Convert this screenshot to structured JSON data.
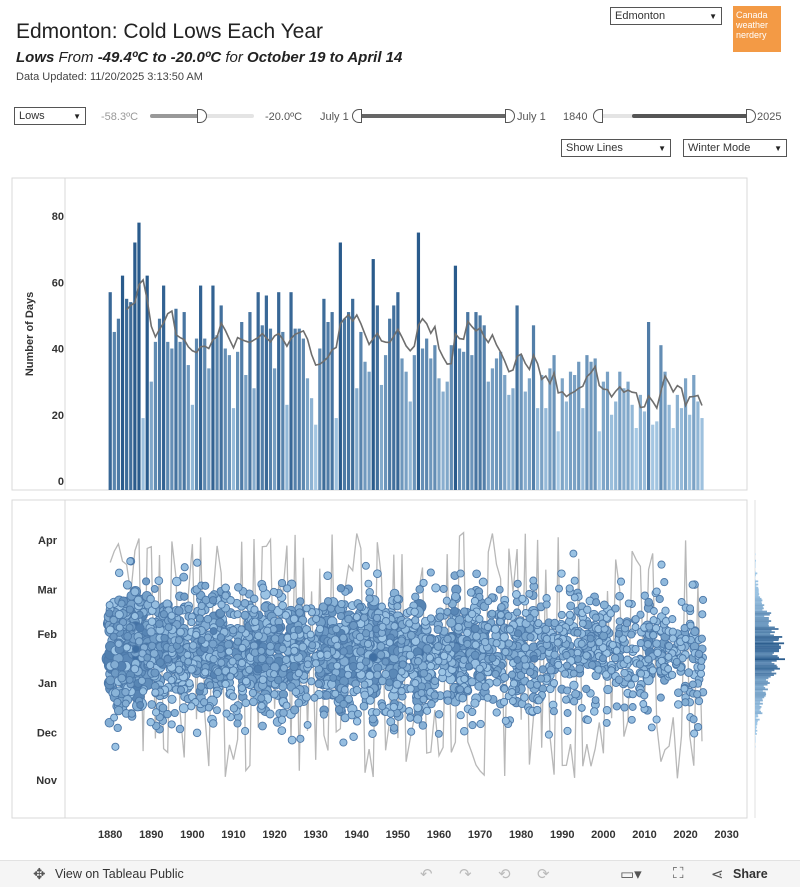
{
  "header": {
    "title": "Edmonton: Cold Lows Each Year",
    "subtitle_prefix": "Lows",
    "subtitle_from": "From",
    "subtitle_range": "-49.4ºC to -20.0ºC",
    "subtitle_for": "for",
    "subtitle_dates": "October 19 to April 14",
    "updated": "Data Updated: 11/20/2025 3:13:50 AM"
  },
  "controls": {
    "city": "Edmonton",
    "brand": "Canada weather nerdery",
    "measure": "Lows",
    "temp_min_label": "-58.3ºC",
    "temp_max_label": "-20.0ºC",
    "date_start_label": "July 1",
    "date_end_label": "July 1",
    "year_start_label": "1840",
    "year_end_label": "2025",
    "lines_option": "Show Lines",
    "mode_option": "Winter Mode"
  },
  "footer": {
    "view_label": "View on Tableau Public",
    "share_label": "Share"
  },
  "colors": {
    "bar_dark": "#2a5b8c",
    "bar_light": "#a9cbe6",
    "line": "#6e6e6e",
    "dot_light": "#a9d0ee",
    "dot_dark": "#3f6fa3",
    "brand": "#f39a45"
  },
  "chart_data": [
    {
      "type": "bar",
      "ylabel": "Number of Days",
      "yticks": [
        0,
        20,
        40,
        60,
        80
      ],
      "ylim": [
        -3,
        88
      ],
      "xlim": [
        1869,
        2033
      ],
      "grid": false,
      "overlay_line": "moving average",
      "x": [
        1880,
        1881,
        1882,
        1883,
        1884,
        1885,
        1886,
        1887,
        1888,
        1889,
        1890,
        1891,
        1892,
        1893,
        1894,
        1895,
        1896,
        1897,
        1898,
        1899,
        1900,
        1901,
        1902,
        1903,
        1904,
        1905,
        1906,
        1907,
        1908,
        1909,
        1910,
        1911,
        1912,
        1913,
        1914,
        1915,
        1916,
        1917,
        1918,
        1919,
        1920,
        1921,
        1922,
        1923,
        1924,
        1925,
        1926,
        1927,
        1928,
        1929,
        1930,
        1931,
        1932,
        1933,
        1934,
        1935,
        1936,
        1937,
        1938,
        1939,
        1940,
        1941,
        1942,
        1943,
        1944,
        1945,
        1946,
        1947,
        1948,
        1949,
        1950,
        1951,
        1952,
        1953,
        1954,
        1955,
        1956,
        1957,
        1958,
        1959,
        1960,
        1961,
        1962,
        1963,
        1964,
        1965,
        1966,
        1967,
        1968,
        1969,
        1970,
        1971,
        1972,
        1973,
        1974,
        1975,
        1976,
        1977,
        1978,
        1979,
        1980,
        1981,
        1982,
        1983,
        1984,
        1985,
        1986,
        1987,
        1988,
        1989,
        1990,
        1991,
        1992,
        1993,
        1994,
        1995,
        1996,
        1997,
        1998,
        1999,
        2000,
        2001,
        2002,
        2003,
        2004,
        2005,
        2006,
        2007,
        2008,
        2009,
        2010,
        2011,
        2012,
        2013,
        2014,
        2015,
        2016,
        2017,
        2018,
        2019,
        2020,
        2021,
        2022,
        2023,
        2024
      ],
      "values": [
        57,
        45,
        49,
        62,
        55,
        54,
        72,
        78,
        19,
        62,
        30,
        42,
        49,
        59,
        42,
        40,
        52,
        42,
        51,
        35,
        23,
        43,
        59,
        43,
        34,
        59,
        44,
        53,
        40,
        38,
        22,
        39,
        48,
        32,
        51,
        28,
        57,
        47,
        56,
        46,
        34,
        57,
        45,
        23,
        57,
        46,
        46,
        43,
        31,
        25,
        17,
        40,
        55,
        48,
        51,
        19,
        72,
        49,
        51,
        55,
        28,
        45,
        36,
        33,
        67,
        53,
        29,
        38,
        49,
        53,
        57,
        37,
        33,
        24,
        38,
        75,
        40,
        43,
        37,
        41,
        31,
        27,
        30,
        41,
        65,
        40,
        39,
        51,
        38,
        51,
        50,
        47,
        30,
        34,
        37,
        39,
        32,
        26,
        28,
        53,
        38,
        27,
        31,
        47,
        22,
        32,
        22,
        34,
        38,
        15,
        31,
        24,
        33,
        32,
        36,
        22,
        38,
        36,
        37,
        15,
        30,
        33,
        20,
        24,
        33,
        28,
        30,
        23,
        16,
        26,
        21,
        48,
        17,
        18,
        41,
        33,
        23,
        16,
        26,
        22,
        31,
        20,
        32,
        24,
        19
      ],
      "moving_average": [
        null,
        null,
        null,
        null,
        51.7,
        53.0,
        53.8,
        59.3,
        60.7,
        54.7,
        46.7,
        43.5,
        45.8,
        47.7,
        50.5,
        51.3,
        44.2,
        43.3,
        42.7,
        40.5,
        39.3,
        38.8,
        40.5,
        40.7,
        40.0,
        42.7,
        43.5,
        47.7,
        45.5,
        42.8,
        40.2,
        43.3,
        42.7,
        42.2,
        41.8,
        42.6,
        43.3,
        44.5,
        43.2,
        42.0,
        43.8,
        44.5,
        42.8,
        40.7,
        43.0,
        44.3,
        44.8,
        45.3,
        42.8,
        38.2,
        35.0,
        35.3,
        36.2,
        37.4,
        39.6,
        40.3,
        47.5,
        49.0,
        50.2,
        48.3,
        50.1,
        47.5,
        44.3,
        41.2,
        43.0,
        44.6,
        42.3,
        41.9,
        41.8,
        43.7,
        45.8,
        43.4,
        40.8,
        39.3,
        40.7,
        47.0,
        49.0,
        47.5,
        44.6,
        46.6,
        39.9,
        37.4,
        35.3,
        35.4,
        44.4,
        43.0,
        42.8,
        48.2,
        46.6,
        45.3,
        46.2,
        43.5,
        41.8,
        44.1,
        41.1,
        38.9,
        36.2,
        33.0,
        33.5,
        37.6,
        38.3,
        35.5,
        33.7,
        38.0,
        35.4,
        30.7,
        31.7,
        29.4,
        32.7,
        26.6,
        26.9,
        25.5,
        26.4,
        27.0,
        28.0,
        28.6,
        31.5,
        32.7,
        34.6,
        28.8,
        27.7,
        27.6,
        25.4,
        27.1,
        28.4,
        26.8,
        27.4,
        26.8,
        26.6,
        22.2,
        22.4,
        25.7,
        24.0,
        22.0,
        27.0,
        31.7,
        29.5,
        26.9,
        28.8,
        28.0,
        22.8,
        25.4,
        25.5,
        25.8,
        22.8
      ],
      "dark_threshold": 62,
      "light_threshold": 15
    },
    {
      "type": "scatter",
      "description_scale": "one point per cold day; y = date within winter season",
      "yticks": [
        "Nov",
        "Dec",
        "Jan",
        "Feb",
        "Mar",
        "Apr"
      ],
      "ytick_days": [
        14,
        44,
        75,
        106,
        134,
        165
      ],
      "xticks": [
        1880,
        1890,
        1900,
        1910,
        1920,
        1930,
        1940,
        1950,
        1960,
        1970,
        1980,
        1990,
        2000,
        2010,
        2020,
        2030
      ],
      "xlim": [
        1869,
        2033
      ],
      "ylim": [
        3,
        183
      ],
      "series_ref": "uses chart_data[0].x and values as per-year point counts",
      "marginal": "histogram of day-of-season, right side"
    }
  ]
}
